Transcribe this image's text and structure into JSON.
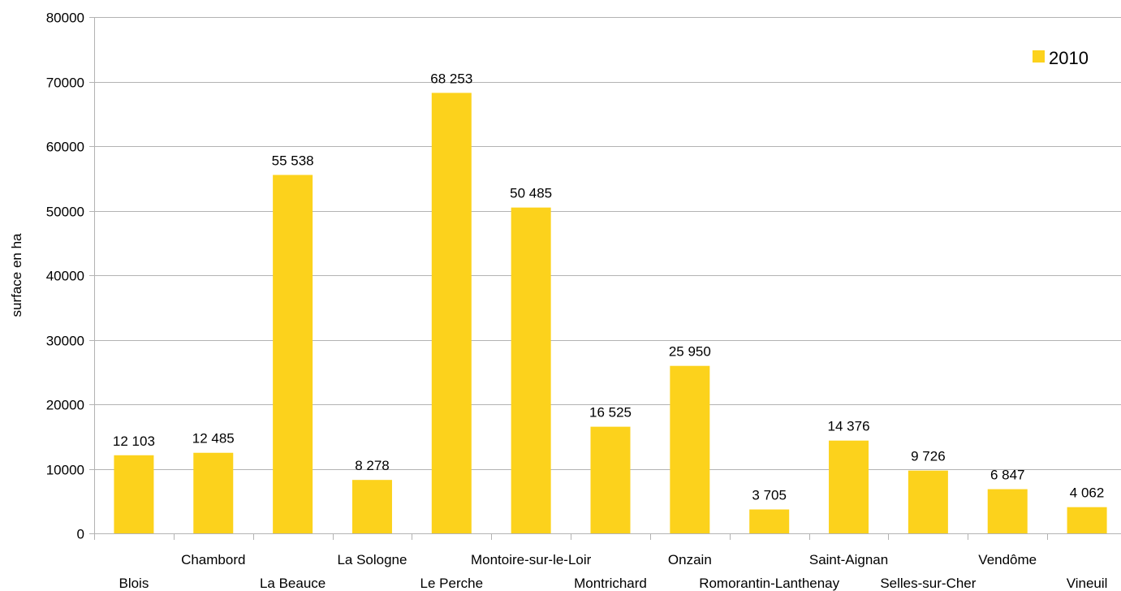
{
  "chart_data": {
    "type": "bar",
    "categories": [
      "Blois",
      "Chambord",
      "La Beauce",
      "La Sologne",
      "Le Perche",
      "Montoire-sur-le-Loir",
      "Montrichard",
      "Onzain",
      "Romorantin-Lanthenay",
      "Saint-Aignan",
      "Selles-sur-Cher",
      "Vendôme",
      "Vineuil"
    ],
    "series": [
      {
        "name": "2010",
        "values": [
          12103,
          12485,
          55538,
          8278,
          68253,
          50485,
          16525,
          25950,
          3705,
          14376,
          9726,
          6847,
          4062
        ],
        "labels": [
          "12 103",
          "12 485",
          "55 538",
          "8 278",
          "68 253",
          "50 485",
          "16 525",
          "25 950",
          "3 705",
          "14 376",
          "9 726",
          "6 847",
          "4 062"
        ],
        "color": "#FCD21C"
      }
    ],
    "ylabel": "surface en ha",
    "xlabel": "",
    "ylim": [
      0,
      80000
    ],
    "yticks": [
      "0",
      "10000",
      "20000",
      "30000",
      "40000",
      "50000",
      "60000",
      "70000",
      "80000"
    ],
    "grid": true,
    "legend": "top-right",
    "gridColor": "#B3B3B3",
    "axisColor": "#B3B3B3"
  }
}
